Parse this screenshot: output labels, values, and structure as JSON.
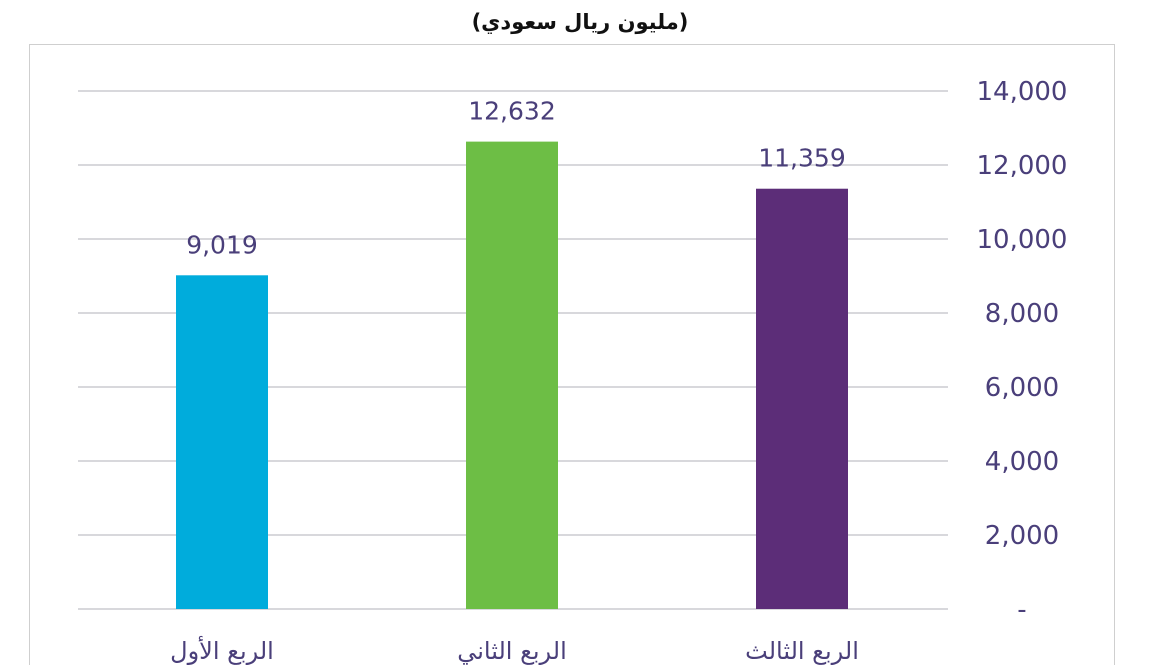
{
  "chart_data": {
    "type": "bar",
    "subtitle": "(مليون ريال سعودي)",
    "categories": [
      "الربع الأول",
      "الربع الثاني",
      "الربع الثالث"
    ],
    "values": [
      9019,
      12632,
      11359
    ],
    "data_labels": [
      "9,019",
      "12,632",
      "11,359"
    ],
    "bar_colors": [
      "#00ACDC",
      "#6DBE45",
      "#5C2D78"
    ],
    "ylim": [
      0,
      14000
    ],
    "y_ticks": [
      0,
      2000,
      4000,
      6000,
      8000,
      10000,
      12000,
      14000
    ],
    "y_tick_labels": [
      "-",
      "2,000",
      "4,000",
      "6,000",
      "8,000",
      "10,000",
      "12,000",
      "14,000"
    ],
    "y_axis_position": "right",
    "grid": true,
    "legend": "none"
  }
}
